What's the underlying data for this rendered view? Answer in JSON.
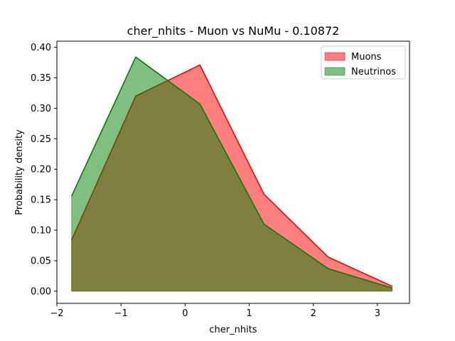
{
  "chart_data": {
    "type": "area",
    "title": "cher_nhits - Muon vs NuMu - 0.10872",
    "xlabel": "cher_nhits",
    "ylabel": "Probability density",
    "xlim": [
      -2.0,
      3.5
    ],
    "ylim": [
      -0.02,
      0.41
    ],
    "xticks": [
      -2,
      -1,
      0,
      1,
      2,
      3
    ],
    "xtick_labels": [
      "−2",
      "−1",
      "0",
      "1",
      "2",
      "3"
    ],
    "yticks": [
      0.0,
      0.05,
      0.1,
      0.15,
      0.2,
      0.25,
      0.3,
      0.35,
      0.4
    ],
    "ytick_labels": [
      "0.00",
      "0.05",
      "0.10",
      "0.15",
      "0.20",
      "0.25",
      "0.30",
      "0.35",
      "0.40"
    ],
    "grid": false,
    "legend_position": "top-right",
    "x": [
      -1.77,
      -0.77,
      0.23,
      1.23,
      2.23,
      3.23
    ],
    "series": [
      {
        "name": "Muons",
        "values": [
          0.084,
          0.32,
          0.371,
          0.159,
          0.056,
          0.008
        ],
        "color": "#ff0000",
        "fill": "#ff0000",
        "alpha": 0.5
      },
      {
        "name": "Neutrinos",
        "values": [
          0.156,
          0.384,
          0.307,
          0.11,
          0.037,
          0.005
        ],
        "color": "#008000",
        "fill": "#008000",
        "alpha": 0.5
      }
    ]
  }
}
